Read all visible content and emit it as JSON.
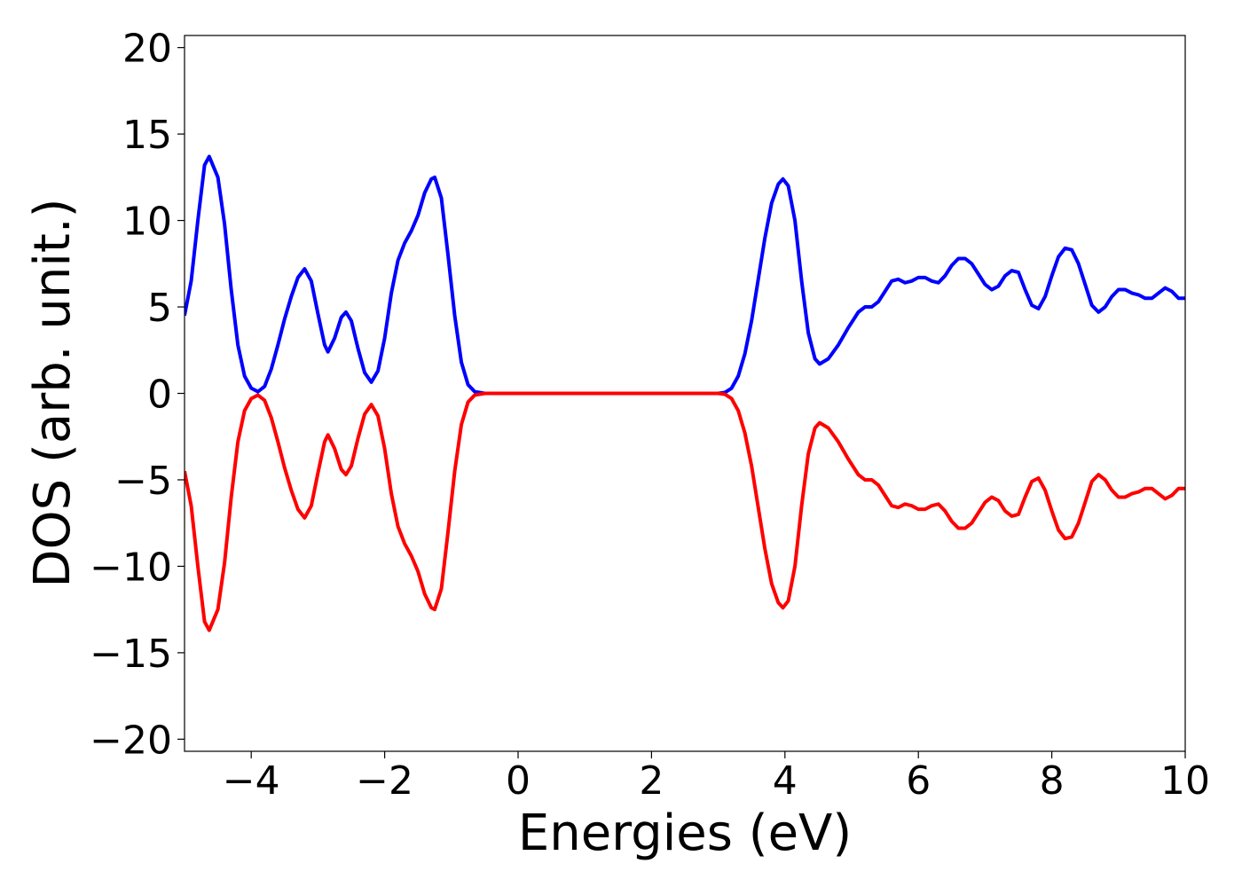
{
  "chart_data": {
    "type": "line",
    "xlabel": "Energies (eV)",
    "ylabel": "DOS (arb. unit.)",
    "xlim": [
      -5,
      10
    ],
    "ylim": [
      -20.7,
      20.7
    ],
    "xticks": [
      {
        "value": -4,
        "label": "−4"
      },
      {
        "value": -2,
        "label": "−2"
      },
      0,
      2,
      4,
      6,
      8,
      10
    ],
    "yticks": [
      {
        "value": -20,
        "label": "−20"
      },
      {
        "value": -15,
        "label": "−15"
      },
      {
        "value": -10,
        "label": "−10"
      },
      {
        "value": -5,
        "label": "−5"
      },
      0,
      5,
      10,
      15,
      20
    ],
    "x": [
      -5.0,
      -4.9,
      -4.8,
      -4.7,
      -4.63,
      -4.5,
      -4.4,
      -4.3,
      -4.2,
      -4.1,
      -4.0,
      -3.9,
      -3.8,
      -3.7,
      -3.6,
      -3.5,
      -3.4,
      -3.3,
      -3.2,
      -3.1,
      -3.0,
      -2.9,
      -2.85,
      -2.75,
      -2.65,
      -2.58,
      -2.5,
      -2.4,
      -2.3,
      -2.2,
      -2.1,
      -2.0,
      -1.9,
      -1.8,
      -1.7,
      -1.6,
      -1.5,
      -1.4,
      -1.3,
      -1.25,
      -1.15,
      -1.05,
      -0.95,
      -0.85,
      -0.75,
      -0.65,
      -0.5,
      0,
      1,
      2,
      3,
      3.1,
      3.2,
      3.3,
      3.4,
      3.5,
      3.6,
      3.7,
      3.8,
      3.9,
      3.97,
      4.05,
      4.15,
      4.25,
      4.35,
      4.45,
      4.52,
      4.65,
      4.8,
      4.95,
      5.1,
      5.2,
      5.3,
      5.4,
      5.5,
      5.6,
      5.7,
      5.8,
      5.9,
      6.0,
      6.1,
      6.2,
      6.3,
      6.4,
      6.5,
      6.6,
      6.7,
      6.8,
      6.9,
      7.0,
      7.1,
      7.2,
      7.3,
      7.4,
      7.5,
      7.6,
      7.7,
      7.8,
      7.9,
      8.0,
      8.1,
      8.2,
      8.3,
      8.4,
      8.5,
      8.6,
      8.7,
      8.8,
      8.9,
      9.0,
      9.1,
      9.2,
      9.3,
      9.4,
      9.5,
      9.6,
      9.7,
      9.8,
      9.9,
      10
    ],
    "series": [
      {
        "color": "#0000ff",
        "values": [
          4.5,
          6.5,
          10,
          13.2,
          13.7,
          12.5,
          9.8,
          6,
          2.8,
          1.0,
          0.3,
          0.1,
          0.4,
          1.4,
          2.8,
          4.3,
          5.6,
          6.7,
          7.2,
          6.5,
          4.6,
          2.8,
          2.4,
          3.2,
          4.4,
          4.7,
          4.2,
          2.6,
          1.2,
          0.65,
          1.3,
          3.2,
          5.8,
          7.7,
          8.7,
          9.4,
          10.3,
          11.6,
          12.4,
          12.5,
          11.3,
          8.0,
          4.5,
          1.8,
          0.5,
          0.1,
          0,
          0,
          0,
          0,
          0,
          0.05,
          0.3,
          1.0,
          2.3,
          4.2,
          6.6,
          9.0,
          11.0,
          12.1,
          12.4,
          12.0,
          10.0,
          6.5,
          3.5,
          2.0,
          1.7,
          2.0,
          2.8,
          3.8,
          4.7,
          5.0,
          5.0,
          5.3,
          5.9,
          6.5,
          6.6,
          6.4,
          6.5,
          6.7,
          6.7,
          6.5,
          6.4,
          6.8,
          7.4,
          7.8,
          7.8,
          7.5,
          6.9,
          6.3,
          6.0,
          6.2,
          6.8,
          7.1,
          7.0,
          6.0,
          5.1,
          4.9,
          5.6,
          6.8,
          7.9,
          8.4,
          8.3,
          7.5,
          6.3,
          5.1,
          4.7,
          5.0,
          5.6,
          6.0,
          6.0,
          5.8,
          5.7,
          5.5,
          5.5,
          5.8,
          6.1,
          5.9,
          5.5,
          5.5
        ]
      },
      {
        "color": "#ff0000",
        "values": [
          -4.5,
          -6.5,
          -10,
          -13.2,
          -13.7,
          -12.5,
          -9.8,
          -6,
          -2.8,
          -1.0,
          -0.3,
          -0.1,
          -0.4,
          -1.4,
          -2.8,
          -4.3,
          -5.6,
          -6.7,
          -7.2,
          -6.5,
          -4.6,
          -2.8,
          -2.4,
          -3.2,
          -4.4,
          -4.7,
          -4.2,
          -2.6,
          -1.2,
          -0.65,
          -1.3,
          -3.2,
          -5.8,
          -7.7,
          -8.7,
          -9.4,
          -10.3,
          -11.6,
          -12.4,
          -12.5,
          -11.3,
          -8.0,
          -4.5,
          -1.8,
          -0.5,
          -0.1,
          0,
          0,
          0,
          0,
          0,
          -0.05,
          -0.3,
          -1.0,
          -2.3,
          -4.2,
          -6.6,
          -9.0,
          -11.0,
          -12.1,
          -12.4,
          -12.0,
          -10.0,
          -6.5,
          -3.5,
          -2.0,
          -1.7,
          -2.0,
          -2.8,
          -3.8,
          -4.7,
          -5.0,
          -5.0,
          -5.3,
          -5.9,
          -6.5,
          -6.6,
          -6.4,
          -6.5,
          -6.7,
          -6.7,
          -6.5,
          -6.4,
          -6.8,
          -7.4,
          -7.8,
          -7.8,
          -7.5,
          -6.9,
          -6.3,
          -6.0,
          -6.2,
          -6.8,
          -7.1,
          -7.0,
          -6.0,
          -5.1,
          -4.9,
          -5.6,
          -6.8,
          -7.9,
          -8.4,
          -8.3,
          -7.5,
          -6.3,
          -5.1,
          -4.7,
          -5.0,
          -5.6,
          -6.0,
          -6.0,
          -5.8,
          -5.7,
          -5.5,
          -5.5,
          -5.8,
          -6.1,
          -5.9,
          -5.5,
          -5.5
        ]
      }
    ]
  }
}
